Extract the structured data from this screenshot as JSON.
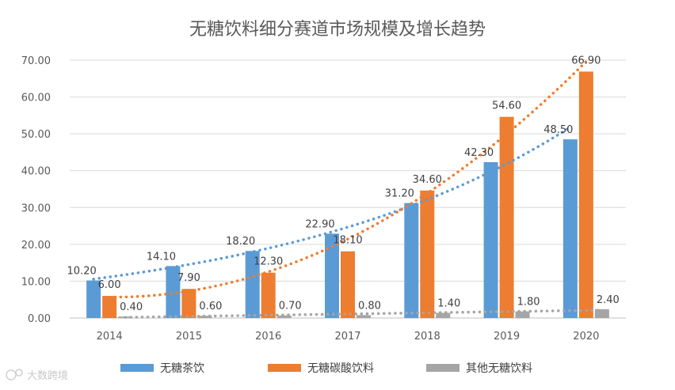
{
  "chart_data": {
    "type": "bar",
    "title": "无糖饮料细分赛道市场规模及增长趋势",
    "categories": [
      "2014",
      "2015",
      "2016",
      "2017",
      "2018",
      "2019",
      "2020"
    ],
    "ylim": [
      0,
      70
    ],
    "yticks": [
      "0.00",
      "10.00",
      "20.00",
      "30.00",
      "40.00",
      "50.00",
      "60.00",
      "70.00"
    ],
    "ytick_values": [
      0,
      10,
      20,
      30,
      40,
      50,
      60,
      70
    ],
    "grid": true,
    "legend_position": "bottom",
    "series": [
      {
        "name": "无糖茶饮",
        "color": "#5b9bd5",
        "values": [
          10.2,
          14.1,
          18.2,
          22.9,
          31.2,
          42.3,
          48.5
        ],
        "labels": [
          "10.20",
          "14.10",
          "18.20",
          "22.90",
          "31.20",
          "42.30",
          "48.50"
        ],
        "trendline": "exponential"
      },
      {
        "name": "无糖碳酸饮料",
        "color": "#ed7d31",
        "values": [
          6.0,
          7.9,
          12.3,
          18.1,
          34.6,
          54.6,
          66.9
        ],
        "labels": [
          "6.00",
          "7.90",
          "12.30",
          "18.10",
          "34.60",
          "54.60",
          "66.90"
        ],
        "trendline": "polynomial"
      },
      {
        "name": "其他无糖饮料",
        "color": "#a5a5a5",
        "values": [
          0.4,
          0.6,
          0.7,
          0.8,
          1.4,
          1.8,
          2.4
        ],
        "labels": [
          "0.40",
          "0.60",
          "0.70",
          "0.80",
          "1.40",
          "1.80",
          "2.40"
        ],
        "trendline": "linear"
      }
    ]
  },
  "watermark": {
    "text": "大数跨境",
    "icon": "brand-logo-icon"
  }
}
